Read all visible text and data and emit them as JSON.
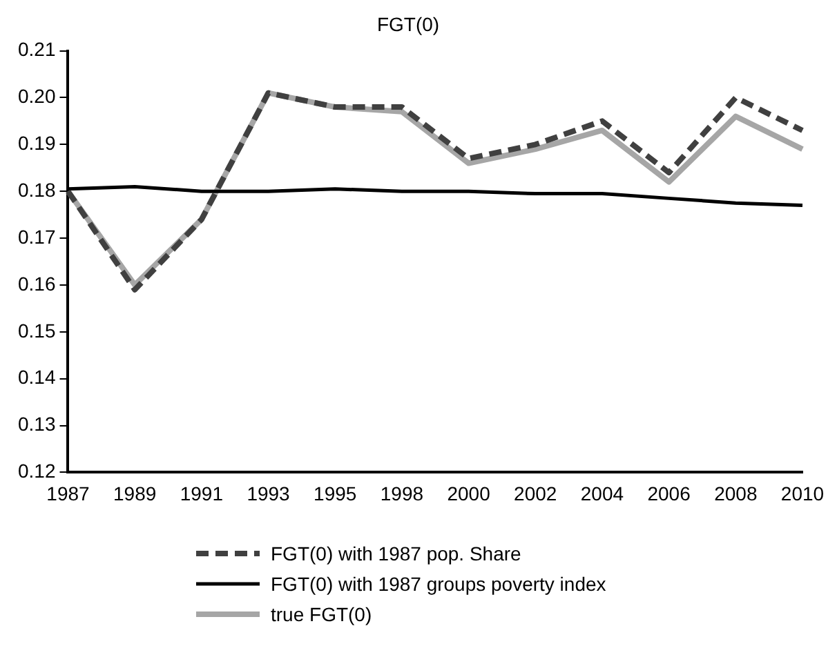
{
  "chart_data": {
    "type": "line",
    "title": "FGT(0)",
    "categories": [
      "1987",
      "1989",
      "1991",
      "1993",
      "1995",
      "1998",
      "2000",
      "2002",
      "2004",
      "2006",
      "2008",
      "2010"
    ],
    "series": [
      {
        "name": "FGT(0) with 1987 pop. Share",
        "color": "#404040",
        "line_style": "dashed",
        "values": [
          0.18,
          0.159,
          0.174,
          0.201,
          0.198,
          0.198,
          0.187,
          0.19,
          0.195,
          0.184,
          0.2,
          0.193
        ]
      },
      {
        "name": "FGT(0) with 1987 groups poverty index",
        "color": "#000000",
        "line_style": "solid",
        "values": [
          0.1805,
          0.181,
          0.18,
          0.18,
          0.1805,
          0.18,
          0.18,
          0.1795,
          0.1795,
          0.1785,
          0.1775,
          0.177
        ]
      },
      {
        "name": "true FGT(0)",
        "color": "#a6a6a6",
        "line_style": "solid",
        "values": [
          0.18,
          0.16,
          0.174,
          0.201,
          0.198,
          0.197,
          0.186,
          0.189,
          0.193,
          0.182,
          0.196,
          0.189
        ]
      }
    ],
    "ylim": [
      0.12,
      0.21
    ],
    "yticks": [
      0.12,
      0.13,
      0.14,
      0.15,
      0.16,
      0.17,
      0.18,
      0.19,
      {
        "value": 0.2,
        "label": "0.20"
      },
      0.21
    ],
    "grid": false,
    "legend": "bottom",
    "marker": "none"
  }
}
